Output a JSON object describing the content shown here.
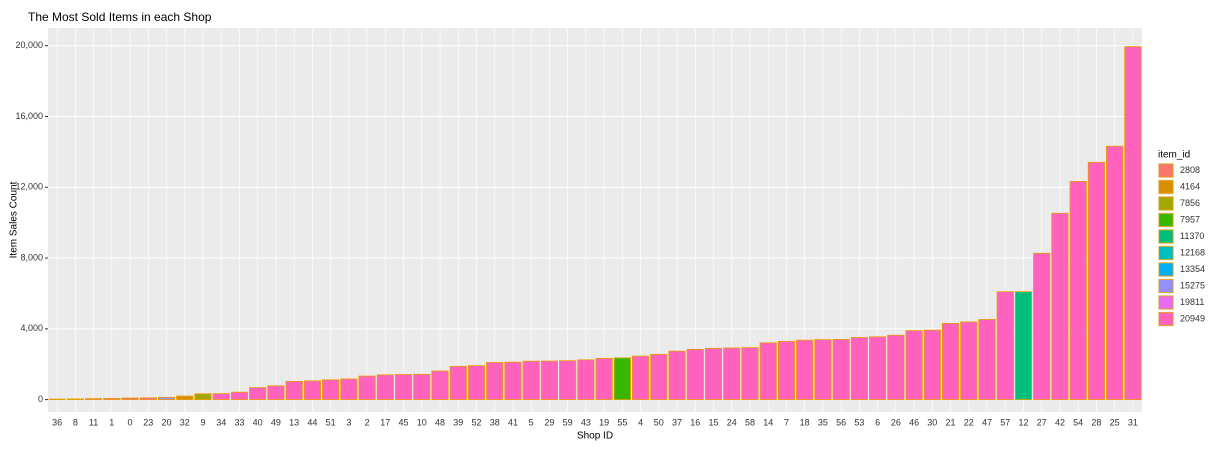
{
  "chart_data": {
    "type": "bar",
    "title": "The Most Sold Items in each Shop",
    "x_label": "Shop ID",
    "y_label": "Item Sales Count",
    "categories": [
      "36",
      "8",
      "11",
      "1",
      "0",
      "23",
      "20",
      "32",
      "9",
      "34",
      "33",
      "40",
      "49",
      "13",
      "44",
      "51",
      "3",
      "2",
      "17",
      "45",
      "10",
      "48",
      "39",
      "52",
      "38",
      "41",
      "5",
      "29",
      "59",
      "43",
      "19",
      "55",
      "4",
      "50",
      "37",
      "16",
      "15",
      "24",
      "58",
      "14",
      "7",
      "18",
      "35",
      "56",
      "53",
      "6",
      "26",
      "46",
      "30",
      "21",
      "22",
      "47",
      "57",
      "12",
      "27",
      "42",
      "54",
      "28",
      "25",
      "31"
    ],
    "values": [
      30,
      40,
      60,
      70,
      90,
      100,
      130,
      200,
      330,
      340,
      420,
      680,
      780,
      1030,
      1060,
      1120,
      1170,
      1330,
      1400,
      1420,
      1430,
      1620,
      1880,
      1920,
      2100,
      2120,
      2170,
      2180,
      2200,
      2250,
      2330,
      2360,
      2460,
      2560,
      2740,
      2840,
      2900,
      2920,
      2940,
      3210,
      3290,
      3360,
      3390,
      3400,
      3510,
      3550,
      3640,
      3900,
      3930,
      4310,
      4390,
      4530,
      6100,
      6100,
      8270,
      10530,
      12330,
      13410,
      14320,
      19950
    ],
    "item_ids": [
      "2808",
      "20949",
      "19811",
      "20949",
      "20949",
      "20949",
      "15275",
      "4164",
      "7856",
      "20949",
      "20949",
      "20949",
      "20949",
      "20949",
      "20949",
      "20949",
      "20949",
      "20949",
      "20949",
      "20949",
      "20949",
      "20949",
      "20949",
      "20949",
      "20949",
      "20949",
      "20949",
      "20949",
      "20949",
      "20949",
      "20949",
      "7957",
      "20949",
      "20949",
      "20949",
      "20949",
      "20949",
      "20949",
      "20949",
      "20949",
      "20949",
      "20949",
      "20949",
      "20949",
      "20949",
      "20949",
      "20949",
      "20949",
      "20949",
      "20949",
      "20949",
      "20949",
      "20949",
      "11370",
      "20949",
      "20949",
      "20949",
      "20949",
      "20949",
      "20949"
    ],
    "legend_title": "item_id",
    "legend": [
      {
        "name": "2808",
        "color": "#F8766D"
      },
      {
        "name": "4164",
        "color": "#D89000"
      },
      {
        "name": "7856",
        "color": "#A3A500"
      },
      {
        "name": "7957",
        "color": "#39B600"
      },
      {
        "name": "11370",
        "color": "#00BF7D"
      },
      {
        "name": "12168",
        "color": "#00BFC4"
      },
      {
        "name": "13354",
        "color": "#00B0F6"
      },
      {
        "name": "15275",
        "color": "#9590FF"
      },
      {
        "name": "19811",
        "color": "#E76BF3"
      },
      {
        "name": "20949",
        "color": "#FF62BC"
      }
    ],
    "outline_color": "#E8A000",
    "ylim": [
      -700,
      21000
    ],
    "yticks": [
      0,
      {
        "value": 4000,
        "label": "4,000"
      },
      {
        "value": 8000,
        "label": "8,000"
      },
      {
        "value": 12000,
        "label": "12,000"
      },
      {
        "value": 16000,
        "label": "16,000"
      },
      {
        "value": 20000,
        "label": "20,000"
      }
    ],
    "grid": true
  }
}
